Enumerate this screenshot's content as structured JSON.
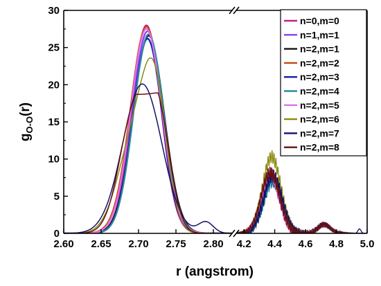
{
  "chart_data": {
    "type": "line",
    "title": "",
    "xlabel": "r (angstrom)",
    "ylabel": "g",
    "ylabel_sub": "O-O",
    "ylabel_suffix": "(r)",
    "ylim": [
      0,
      30
    ],
    "yticks": [
      "0",
      "5",
      "10",
      "15",
      "20",
      "25",
      "30"
    ],
    "axis_break": true,
    "x_segments": [
      {
        "xlim": [
          2.6,
          2.825
        ],
        "ticks": [
          "2.60",
          "2.65",
          "2.70",
          "2.75",
          "2.80"
        ]
      },
      {
        "xlim": [
          4.15,
          5.0
        ],
        "ticks": [
          "4.2",
          "4.4",
          "4.6",
          "4.8",
          "5.0"
        ]
      }
    ],
    "grid": false,
    "legend_position": "top-right",
    "series": [
      {
        "name": "n=0,m=0",
        "color": "#c0208a",
        "peak_x": 2.712,
        "peak_y": 28.0,
        "secondary_peak_y": 7.8
      },
      {
        "name": "n=1,m=1",
        "color": "#8a3cf0",
        "peak_x": 2.712,
        "peak_y": 27.2,
        "secondary_peak_y": 7.5
      },
      {
        "name": "n=2,m=1",
        "color": "#101010",
        "peak_x": 2.712,
        "peak_y": 26.6,
        "secondary_peak_y": 7.2
      },
      {
        "name": "n=2,m=2",
        "color": "#c04a10",
        "peak_x": 2.712,
        "peak_y": 27.8,
        "secondary_peak_y": 8.0
      },
      {
        "name": "n=2,m=3",
        "color": "#1a1aa8",
        "peak_x": 2.712,
        "peak_y": 26.2,
        "secondary_peak_y": 7.6
      },
      {
        "name": "n=2,m=4",
        "color": "#2a8aa0",
        "peak_x": 2.712,
        "peak_y": 26.8,
        "secondary_peak_y": 7.0
      },
      {
        "name": "n=2,m=5",
        "color": "#e070f0",
        "peak_x": 2.712,
        "peak_y": 27.5,
        "secondary_peak_y": 7.9
      },
      {
        "name": "n=2,m=6",
        "color": "#8a8a10",
        "peak_x": 2.722,
        "peak_y": 23.6,
        "secondary_peak_y": 10.3
      },
      {
        "name": "n=2,m=7",
        "color": "#10106a",
        "peak_x": 2.705,
        "peak_y": 20.1,
        "secondary_peak_y": 7.7
      },
      {
        "name": "n=2,m=8",
        "color": "#6a1010",
        "peak_x": 2.727,
        "peak_y": 18.7,
        "secondary_peak_y": 8.2
      }
    ]
  }
}
